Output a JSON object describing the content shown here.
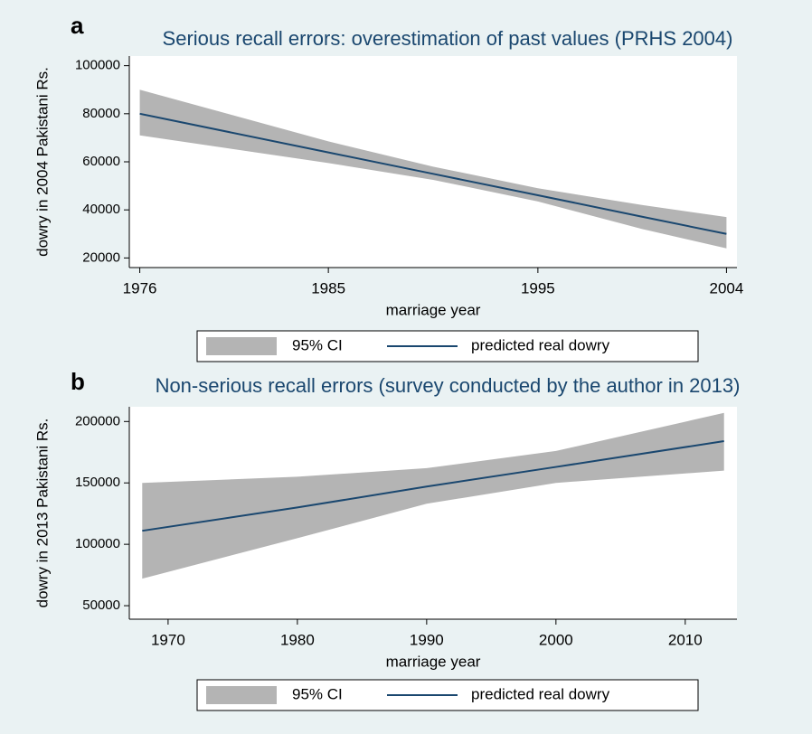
{
  "chart_data": [
    {
      "type": "line",
      "label": "a",
      "title": "Serious recall errors: overestimation of past values (PRHS 2004)",
      "x_label": "marriage year",
      "y_label": "dowry in 2004 Pakistani Rs.",
      "x": [
        1976,
        1985,
        1990,
        1995,
        2000,
        2004
      ],
      "series": [
        {
          "name": "95% CI",
          "color": "#b4b4b4",
          "lower": [
            71000,
            59500,
            52500,
            43500,
            32000,
            24000
          ],
          "upper": [
            90000,
            68500,
            58000,
            49000,
            42000,
            37000
          ]
        },
        {
          "name": "predicted real dowry",
          "color": "#1a476f",
          "values": [
            80000,
            63900,
            55000,
            46100,
            37100,
            30000
          ]
        }
      ],
      "xlim": [
        1975.5,
        2004.5
      ],
      "xticks": [
        1976,
        1985,
        1995,
        2004
      ],
      "ylim": [
        16000,
        104000
      ],
      "yticks": [
        20000,
        40000,
        60000,
        80000,
        100000
      ]
    },
    {
      "type": "line",
      "label": "b",
      "title": "Non-serious recall errors (survey conducted by the author in 2013)",
      "x_label": "marriage year",
      "y_label": "dowry in 2013 Pakistani Rs.",
      "x": [
        1968,
        1980,
        1990,
        2000,
        2013
      ],
      "series": [
        {
          "name": "95% CI",
          "color": "#b4b4b4",
          "lower": [
            72000,
            105000,
            133000,
            150000,
            160000
          ],
          "upper": [
            150000,
            155000,
            162000,
            176000,
            207000
          ]
        },
        {
          "name": "predicted real dowry",
          "color": "#1a476f",
          "values": [
            111000,
            130000,
            147000,
            163000,
            184000
          ]
        }
      ],
      "xlim": [
        1967,
        2014
      ],
      "xticks": [
        1970,
        1980,
        1990,
        2000,
        2010
      ],
      "ylim": [
        39000,
        212000
      ],
      "yticks": [
        50000,
        100000,
        150000,
        200000
      ]
    }
  ]
}
